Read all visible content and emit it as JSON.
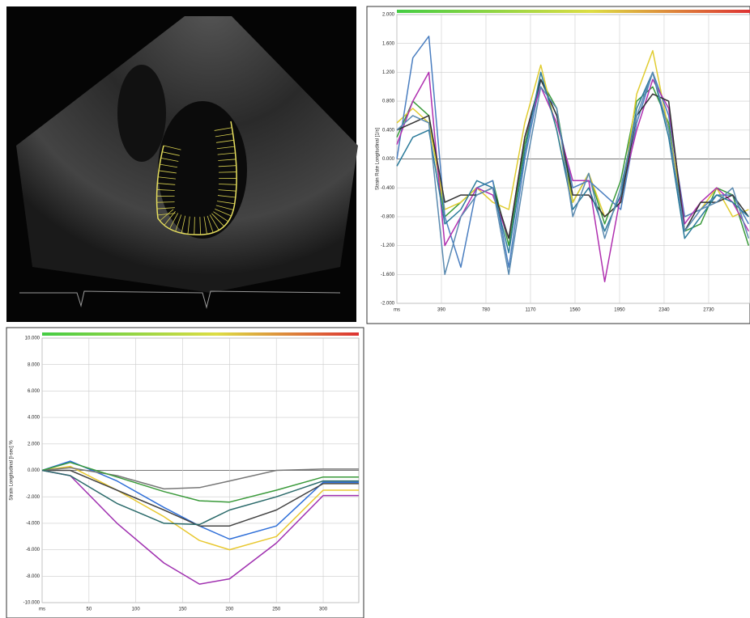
{
  "chart_data": [
    {
      "type": "line",
      "y_label": "Strain Rate Longitudinal [1/s]",
      "x": [
        0,
        140,
        280,
        420,
        560,
        700,
        840,
        980,
        1120,
        1260,
        1400,
        1540,
        1680,
        1820,
        1960,
        2100,
        2240,
        2380,
        2520,
        2660,
        2800,
        2940,
        3080
      ],
      "series": [
        {
          "color": "#3a9a3a",
          "values": [
            0.3,
            0.8,
            0.6,
            -0.8,
            -0.6,
            -0.4,
            -0.3,
            -1.2,
            0.2,
            1.1,
            0.7,
            -0.6,
            -0.2,
            -0.9,
            -0.3,
            0.8,
            1.0,
            0.5,
            -1.0,
            -0.9,
            -0.4,
            -0.5,
            -1.2
          ]
        },
        {
          "color": "#e0cc30",
          "values": [
            0.5,
            0.7,
            0.5,
            -0.7,
            -0.6,
            -0.4,
            -0.6,
            -0.7,
            0.5,
            1.3,
            0.4,
            -0.6,
            -0.2,
            -0.8,
            -0.6,
            0.9,
            1.5,
            0.4,
            -0.8,
            -0.7,
            -0.4,
            -0.8,
            -0.7
          ]
        },
        {
          "color": "#4a7ec0",
          "values": [
            0.0,
            1.4,
            1.7,
            -0.8,
            -1.5,
            -0.4,
            -0.3,
            -1.5,
            0.0,
            1.1,
            0.6,
            -0.4,
            -0.3,
            -0.5,
            -0.7,
            0.5,
            1.2,
            0.6,
            -0.8,
            -0.7,
            -0.5,
            -0.5,
            -0.9
          ]
        },
        {
          "color": "#b030b0",
          "values": [
            0.2,
            0.8,
            1.2,
            -1.2,
            -0.8,
            -0.4,
            -0.5,
            -1.1,
            0.3,
            1.0,
            0.5,
            -0.3,
            -0.3,
            -1.7,
            -0.5,
            0.4,
            1.1,
            0.7,
            -0.9,
            -0.6,
            -0.4,
            -0.6,
            -1.0
          ]
        },
        {
          "color": "#333333",
          "values": [
            0.4,
            0.5,
            0.6,
            -0.6,
            -0.5,
            -0.5,
            -0.4,
            -1.1,
            0.3,
            1.1,
            0.6,
            -0.5,
            -0.5,
            -0.8,
            -0.6,
            0.6,
            0.9,
            0.8,
            -1.0,
            -0.6,
            -0.6,
            -0.5,
            -0.8
          ]
        },
        {
          "color": "#2a7a9a",
          "values": [
            -0.1,
            0.3,
            0.4,
            -0.9,
            -0.7,
            -0.3,
            -0.4,
            -1.3,
            0.1,
            1.2,
            0.4,
            -0.7,
            -0.4,
            -1.0,
            -0.5,
            0.7,
            1.2,
            0.3,
            -1.1,
            -0.8,
            -0.5,
            -0.6,
            -0.8
          ]
        },
        {
          "color": "#5a8ab0",
          "values": [
            0.4,
            0.6,
            0.5,
            -1.6,
            -0.8,
            -0.5,
            -0.4,
            -1.6,
            -0.2,
            1.0,
            0.7,
            -0.8,
            -0.2,
            -1.1,
            -0.4,
            0.6,
            1.2,
            0.4,
            -1.0,
            -0.7,
            -0.6,
            -0.4,
            -1.1
          ]
        }
      ],
      "xlim": [
        0,
        3092
      ],
      "ylim": [
        -2,
        2
      ],
      "xticks": [
        {
          "value": 0,
          "label": "ms"
        },
        390,
        780,
        1170,
        1560,
        1950,
        2340,
        2730
      ],
      "yticks": [
        {
          "value": 2,
          "label": "2.000"
        },
        {
          "value": 1.6,
          "label": "1.600"
        },
        {
          "value": 1.2,
          "label": "1.200"
        },
        {
          "value": 0.8,
          "label": "0.800"
        },
        {
          "value": 0.4,
          "label": "0.400"
        },
        {
          "value": 0,
          "label": "0.000"
        },
        {
          "value": -0.4,
          "label": "-0.400"
        },
        {
          "value": -0.8,
          "label": "-0.800"
        },
        {
          "value": -1.2,
          "label": "-1.200"
        },
        {
          "value": -1.6,
          "label": "-1.600"
        },
        {
          "value": -2,
          "label": "-2.000"
        }
      ],
      "grid": true
    },
    {
      "type": "line",
      "y_label": "Strain Longitudinal [l-sec] %",
      "x": [
        0,
        30,
        80,
        130,
        168,
        200,
        250,
        300,
        338
      ],
      "series": [
        {
          "color": "#a030b0",
          "values": [
            0,
            -0.4,
            -4.0,
            -7.0,
            -8.6,
            -8.2,
            -5.5,
            -1.9,
            -1.9
          ]
        },
        {
          "color": "#e8c830",
          "values": [
            0,
            0.3,
            -1.5,
            -3.5,
            -5.3,
            -6.0,
            -5.0,
            -1.5,
            -1.5
          ]
        },
        {
          "color": "#2f6fd8",
          "values": [
            0,
            0.7,
            -0.8,
            -2.8,
            -4.2,
            -5.2,
            -4.2,
            -0.9,
            -0.9
          ]
        },
        {
          "color": "#444444",
          "values": [
            0,
            0.0,
            -1.5,
            -3.0,
            -4.2,
            -4.2,
            -3.0,
            -1.0,
            -1.0
          ]
        },
        {
          "color": "#777777",
          "values": [
            0,
            0.2,
            -0.4,
            -1.4,
            -1.3,
            -0.8,
            0.0,
            0.1,
            0.1
          ]
        },
        {
          "color": "#3a9a3a",
          "values": [
            0,
            0.6,
            -0.5,
            -1.6,
            -2.3,
            -2.4,
            -1.5,
            -0.5,
            -0.5
          ]
        },
        {
          "color": "#2a6a6a",
          "values": [
            0,
            -0.4,
            -2.5,
            -4.0,
            -4.1,
            -3.0,
            -2.0,
            -0.8,
            -0.8
          ]
        }
      ],
      "xlim": [
        0,
        338
      ],
      "ylim": [
        -10,
        10
      ],
      "xticks": [
        {
          "value": 0,
          "label": "ms"
        },
        50,
        100,
        150,
        200,
        250,
        300
      ],
      "yticks": [
        {
          "value": 10,
          "label": "10.000"
        },
        {
          "value": 8,
          "label": "8.000"
        },
        {
          "value": 6,
          "label": "6.000"
        },
        {
          "value": 4,
          "label": "4.000"
        },
        {
          "value": 2,
          "label": "2.000"
        },
        {
          "value": 0,
          "label": "0.000"
        },
        {
          "value": -2,
          "label": "-2.000"
        },
        {
          "value": -4,
          "label": "-4.000"
        },
        {
          "value": -6,
          "label": "-6.000"
        },
        {
          "value": -8,
          "label": "-8.000"
        },
        {
          "value": -10,
          "label": "-10.000"
        }
      ],
      "grid": true
    }
  ]
}
